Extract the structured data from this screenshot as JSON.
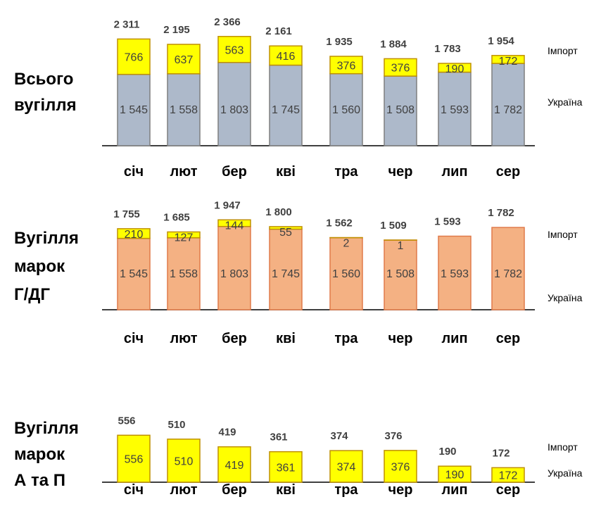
{
  "colors": {
    "ukraine_total": "#adb9ca",
    "ukraine_g": "#f4b183",
    "import": "#ffff00",
    "border_total": "#7f7f7f",
    "border_g": "#e07a4a",
    "border_import": "#bf9000"
  },
  "chart_data": [
    {
      "type": "bar",
      "stacked": true,
      "row_label": [
        "Всього",
        "вугілля"
      ],
      "categories": [
        "січ",
        "лют",
        "бер",
        "кві",
        "тра",
        "чер",
        "лип",
        "сер"
      ],
      "series": [
        {
          "name": "Україна",
          "values": [
            1545,
            1558,
            1803,
            1745,
            1560,
            1508,
            1593,
            1782
          ],
          "labels": [
            "1 545",
            "1 558",
            "1 803",
            "1 745",
            "1 560",
            "1 508",
            "1 593",
            "1 782"
          ]
        },
        {
          "name": "Імпорт",
          "values": [
            766,
            637,
            563,
            416,
            376,
            376,
            190,
            172
          ],
          "labels": [
            "766",
            "637",
            "563",
            "416",
            "376",
            "376",
            "190",
            "172"
          ]
        }
      ],
      "totals": [
        "2 311",
        "2 195",
        "2 366",
        "2 161",
        "1 935",
        "1 884",
        "1 783",
        "1 954"
      ],
      "legend": [
        "Імпорт",
        "Україна"
      ],
      "ylim": [
        0,
        2400
      ]
    },
    {
      "type": "bar",
      "stacked": true,
      "row_label": [
        "Вугілля",
        "марок",
        "Г/ДГ"
      ],
      "categories": [
        "січ",
        "лют",
        "бер",
        "кві",
        "тра",
        "чер",
        "лип",
        "сер"
      ],
      "series": [
        {
          "name": "Україна",
          "values": [
            1545,
            1558,
            1803,
            1745,
            1560,
            1508,
            1593,
            1782
          ],
          "labels": [
            "1 545",
            "1 558",
            "1 803",
            "1 745",
            "1 560",
            "1 508",
            "1 593",
            "1 782"
          ]
        },
        {
          "name": "Імпорт",
          "values": [
            210,
            127,
            144,
            55,
            2,
            1,
            0,
            0
          ],
          "labels": [
            "210",
            "127",
            "144",
            "55",
            "2",
            "1",
            "",
            ""
          ]
        }
      ],
      "totals": [
        "1 755",
        "1 685",
        "1 947",
        "1 800",
        "1 562",
        "1 509",
        "1 593",
        "1 782"
      ],
      "legend": [
        "Імпорт",
        "Україна"
      ],
      "ylim": [
        0,
        2400
      ]
    },
    {
      "type": "bar",
      "stacked": true,
      "row_label": [
        "Вугілля",
        "марок",
        "А та П"
      ],
      "categories": [
        "січ",
        "лют",
        "бер",
        "кві",
        "тра",
        "чер",
        "лип",
        "сер"
      ],
      "series": [
        {
          "name": "Україна",
          "values": [
            0,
            0,
            0,
            0,
            0,
            0,
            0,
            0
          ],
          "labels": [
            "",
            "",
            "",
            "",
            "",
            "",
            "",
            ""
          ]
        },
        {
          "name": "Імпорт",
          "values": [
            556,
            510,
            419,
            361,
            374,
            376,
            190,
            172
          ],
          "labels": [
            "556",
            "510",
            "419",
            "361",
            "374",
            "376",
            "190",
            "172"
          ]
        }
      ],
      "totals": [
        "556",
        "510",
        "419",
        "361",
        "374",
        "376",
        "190",
        "172"
      ],
      "legend": [
        "Імпорт",
        "Україна"
      ],
      "ylim": [
        0,
        2400
      ]
    }
  ]
}
